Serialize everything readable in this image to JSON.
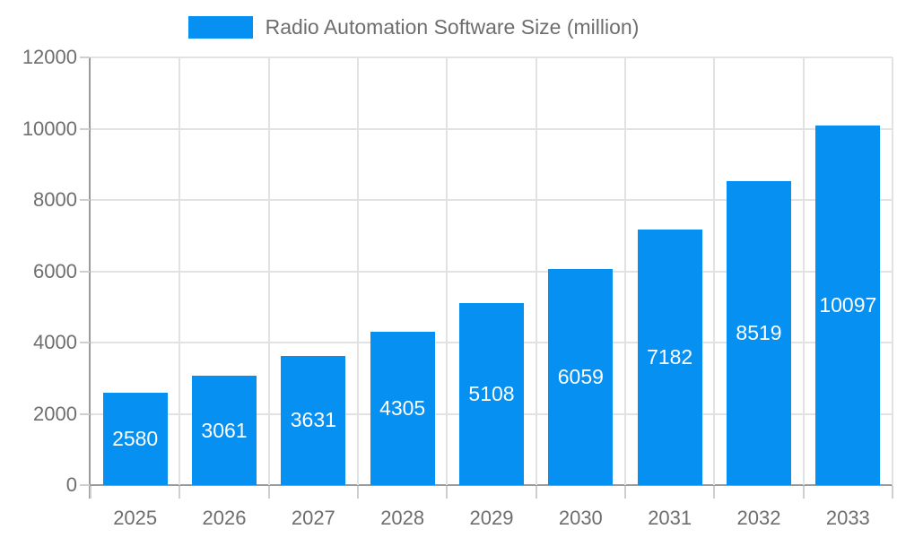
{
  "legend": {
    "label": "Radio Automation Software Size (million)"
  },
  "chart_data": {
    "type": "bar",
    "title": "Radio Automation Software Size (million)",
    "categories": [
      "2025",
      "2026",
      "2027",
      "2028",
      "2029",
      "2030",
      "2031",
      "2032",
      "2033"
    ],
    "values": [
      2580,
      3061,
      3631,
      4305,
      5108,
      6059,
      7182,
      8519,
      10097
    ],
    "value_labels": [
      "2580",
      "3061",
      "3631",
      "4305",
      "5108",
      "6059",
      "7182",
      "8519",
      "10097"
    ],
    "xlabel": "",
    "ylabel": "",
    "ylim": [
      0,
      12000
    ],
    "yticks": [
      0,
      2000,
      4000,
      6000,
      8000,
      10000,
      12000
    ],
    "grid": true,
    "legend_position": "top-center",
    "colors": {
      "bar": "#0590f2",
      "value_label": "#ffffff",
      "axis": "#9a9a9a",
      "gridline": "#e2e2e2",
      "tick": "#cfcfcf",
      "text": "#6e6e6e",
      "background": "#ffffff"
    }
  }
}
